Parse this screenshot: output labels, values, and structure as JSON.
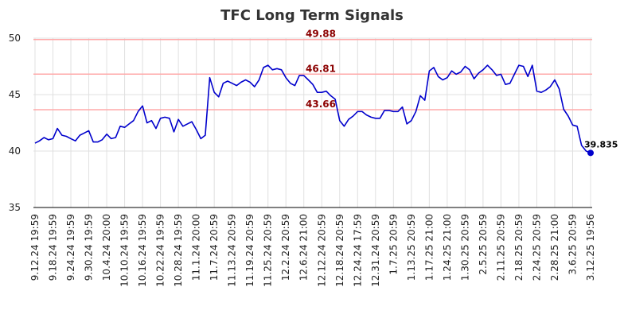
{
  "chart_data": {
    "type": "line",
    "title": "TFC Long Term Signals",
    "xlabel": "",
    "ylabel": "",
    "ylim": [
      35,
      50
    ],
    "yticks": [
      35,
      40,
      45,
      50
    ],
    "grid": true,
    "legend": "none",
    "x_tick_labels": [
      "9.12.24 19:59",
      "9.18.24 19:59",
      "9.24.24 19:59",
      "9.30.24 19:59",
      "10.4.24 20:00",
      "10.10.24 19:59",
      "10.16.24 19:59",
      "10.22.24 19:59",
      "10.28.24 19:59",
      "11.1.24 20:00",
      "11.7.24 20:59",
      "11.13.24 20:59",
      "11.19.24 20:59",
      "11.25.24 20:59",
      "12.2.24 20:59",
      "12.6.24 21:00",
      "12.12.24 20:59",
      "12.18.24 20:59",
      "12.24.24 17:59",
      "12.31.24 20:59",
      "1.7.25 20:59",
      "1.13.25 20:59",
      "1.17.25 21:00",
      "1.24.25 21:00",
      "1.30.25 20:59",
      "2.5.25 20:59",
      "2.11.25 20:59",
      "2.18.25 20:59",
      "2.24.25 20:59",
      "2.28.25 21:00",
      "3.6.25 20:59",
      "3.12.25 19:56"
    ],
    "levels": [
      {
        "value": 49.88,
        "label": "49.88",
        "color": "#ffaaaa"
      },
      {
        "value": 46.81,
        "label": "46.81",
        "color": "#ffaaaa"
      },
      {
        "value": 43.66,
        "label": "43.66",
        "color": "#ffaaaa"
      }
    ],
    "series": [
      {
        "color": "#0000cc",
        "values": [
          40.7,
          40.9,
          41.2,
          41.0,
          41.1,
          42.0,
          41.4,
          41.3,
          41.1,
          40.9,
          41.4,
          41.6,
          41.8,
          40.8,
          40.8,
          41.0,
          41.5,
          41.1,
          41.2,
          42.2,
          42.1,
          42.4,
          42.7,
          43.5,
          44.0,
          42.5,
          42.7,
          42.0,
          42.9,
          43.0,
          42.9,
          41.7,
          42.8,
          42.2,
          42.4,
          42.6,
          41.9,
          41.1,
          41.4,
          46.5,
          45.2,
          44.8,
          46.0,
          46.2,
          46.0,
          45.8,
          46.1,
          46.3,
          46.1,
          45.7,
          46.3,
          47.4,
          47.6,
          47.2,
          47.3,
          47.2,
          46.5,
          46.0,
          45.8,
          46.7,
          46.7,
          46.3,
          45.9,
          45.2,
          45.2,
          45.3,
          44.9,
          44.6,
          42.7,
          42.2,
          42.8,
          43.1,
          43.5,
          43.5,
          43.2,
          43.0,
          42.9,
          42.9,
          43.6,
          43.6,
          43.5,
          43.5,
          43.9,
          42.4,
          42.7,
          43.5,
          44.9,
          44.5,
          47.1,
          47.4,
          46.6,
          46.3,
          46.5,
          47.1,
          46.8,
          47.0,
          47.5,
          47.2,
          46.4,
          46.9,
          47.2,
          47.6,
          47.2,
          46.7,
          46.8,
          45.9,
          46.0,
          46.8,
          47.6,
          47.5,
          46.6,
          47.6,
          45.3,
          45.2,
          45.4,
          45.7,
          46.3,
          45.5,
          43.7,
          43.1,
          42.3,
          42.2,
          40.5,
          40.0,
          39.835
        ]
      }
    ],
    "last_value_label": "39.835"
  }
}
